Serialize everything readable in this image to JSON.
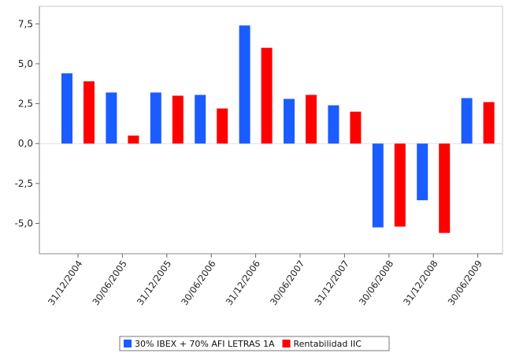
{
  "chart_data": {
    "type": "bar",
    "categories": [
      "31/12/2004",
      "30/06/2005",
      "31/12/2005",
      "30/06/2006",
      "31/12/2006",
      "30/06/2007",
      "31/12/2007",
      "30/06/2008",
      "31/12/2008",
      "30/06/2009"
    ],
    "series": [
      {
        "name": "30% IBEX + 70% AFI LETRAS 1A",
        "color": "#1a5cff",
        "values": [
          4.4,
          3.2,
          3.2,
          3.05,
          7.4,
          2.8,
          2.4,
          -5.25,
          -3.55,
          2.85
        ]
      },
      {
        "name": "Rentabilidad IIC",
        "color": "#ff0000",
        "values": [
          3.9,
          0.5,
          3.0,
          2.2,
          6.0,
          3.05,
          2.0,
          -5.2,
          -5.6,
          2.6
        ]
      }
    ],
    "ylim": [
      -6.9,
      8.6
    ],
    "yticks": [
      "7,5",
      "5,0",
      "2,5",
      "0,0",
      "-2,5",
      "-5,0"
    ],
    "ytick_values": [
      7.5,
      5.0,
      2.5,
      0.0,
      -2.5,
      -5.0
    ],
    "grid": false,
    "legend_position": "bottom"
  }
}
